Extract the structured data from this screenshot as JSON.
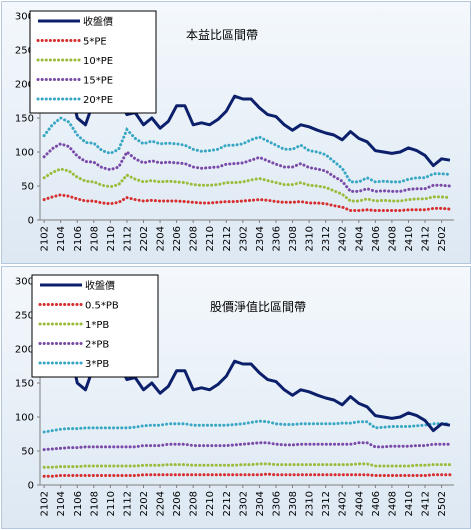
{
  "chart_data": [
    {
      "type": "line",
      "title": "本益比區間帶",
      "x": [
        "2102",
        "2103",
        "2104",
        "2105",
        "2106",
        "2107",
        "2108",
        "2109",
        "2110",
        "2111",
        "2112",
        "2201",
        "2202",
        "2203",
        "2204",
        "2205",
        "2206",
        "2207",
        "2208",
        "2209",
        "2210",
        "2211",
        "2212",
        "2301",
        "2302",
        "2303",
        "2304",
        "2305",
        "2306",
        "2307",
        "2308",
        "2309",
        "2310",
        "2311",
        "2312",
        "2401",
        "2402",
        "2403",
        "2404",
        "2405",
        "2406",
        "2407",
        "2408",
        "2409",
        "2410",
        "2411",
        "2412",
        "2501",
        "2502",
        "2503"
      ],
      "x_tick_labels": [
        "2102",
        "2104",
        "2106",
        "2108",
        "2110",
        "2112",
        "2202",
        "2204",
        "2206",
        "2208",
        "2210",
        "2212",
        "2302",
        "2304",
        "2306",
        "2308",
        "2310",
        "2312",
        "2402",
        "2404",
        "2406",
        "2408",
        "2410",
        "2412",
        "2502"
      ],
      "ylim": [
        0,
        300
      ],
      "yticks": [
        0,
        50,
        100,
        150,
        200,
        250,
        300
      ],
      "legend": "top-left",
      "series": [
        {
          "name": "收盤價",
          "color": "#0b1f6b",
          "style": "solid",
          "values": [
            190,
            200,
            215,
            205,
            150,
            140,
            175,
            180,
            165,
            180,
            155,
            158,
            140,
            150,
            135,
            145,
            168,
            168,
            140,
            143,
            140,
            148,
            160,
            182,
            178,
            178,
            165,
            155,
            152,
            140,
            132,
            140,
            137,
            132,
            128,
            125,
            118,
            130,
            120,
            115,
            102,
            100,
            98,
            100,
            106,
            102,
            95,
            80,
            90,
            88
          ]
        },
        {
          "name": "5*PE",
          "color": "#d62e2e",
          "style": "dotted",
          "values": [
            30,
            34,
            37,
            35,
            31,
            28,
            28,
            25,
            24,
            26,
            33,
            30,
            28,
            29,
            28,
            28,
            28,
            27,
            26,
            25,
            25,
            26,
            27,
            27,
            28,
            29,
            30,
            29,
            27,
            26,
            26,
            27,
            25,
            25,
            24,
            21,
            19,
            14,
            14,
            15,
            14,
            14,
            14,
            14,
            15,
            15,
            15,
            17,
            17,
            16
          ]
        },
        {
          "name": "10*PE",
          "color": "#9bbb3b",
          "style": "dotted",
          "values": [
            62,
            70,
            75,
            72,
            63,
            57,
            56,
            51,
            49,
            52,
            66,
            60,
            56,
            58,
            56,
            57,
            56,
            55,
            52,
            51,
            51,
            52,
            55,
            55,
            56,
            59,
            61,
            58,
            55,
            52,
            52,
            55,
            51,
            50,
            48,
            43,
            38,
            28,
            28,
            31,
            28,
            29,
            28,
            28,
            30,
            31,
            31,
            34,
            34,
            33
          ]
        },
        {
          "name": "15*PE",
          "color": "#7a4aa8",
          "style": "dotted",
          "values": [
            93,
            105,
            112,
            108,
            94,
            86,
            85,
            77,
            74,
            78,
            100,
            90,
            84,
            87,
            84,
            85,
            84,
            83,
            78,
            76,
            77,
            78,
            82,
            83,
            84,
            88,
            92,
            87,
            82,
            78,
            78,
            83,
            77,
            75,
            72,
            64,
            57,
            42,
            42,
            46,
            42,
            43,
            42,
            42,
            45,
            46,
            46,
            51,
            51,
            50
          ]
        },
        {
          "name": "20*PE",
          "color": "#38a7c4",
          "style": "dotted",
          "values": [
            124,
            140,
            150,
            144,
            125,
            114,
            113,
            102,
            98,
            104,
            133,
            120,
            112,
            116,
            112,
            113,
            112,
            110,
            104,
            101,
            102,
            104,
            110,
            110,
            112,
            118,
            122,
            116,
            110,
            104,
            104,
            110,
            102,
            100,
            96,
            86,
            76,
            56,
            56,
            62,
            56,
            57,
            56,
            56,
            60,
            62,
            62,
            68,
            68,
            67
          ]
        }
      ]
    },
    {
      "type": "line",
      "title": "股價淨值比區間帶",
      "x": [
        "2102",
        "2103",
        "2104",
        "2105",
        "2106",
        "2107",
        "2108",
        "2109",
        "2110",
        "2111",
        "2112",
        "2201",
        "2202",
        "2203",
        "2204",
        "2205",
        "2206",
        "2207",
        "2208",
        "2209",
        "2210",
        "2211",
        "2212",
        "2301",
        "2302",
        "2303",
        "2304",
        "2305",
        "2306",
        "2307",
        "2308",
        "2309",
        "2310",
        "2311",
        "2312",
        "2401",
        "2402",
        "2403",
        "2404",
        "2405",
        "2406",
        "2407",
        "2408",
        "2409",
        "2410",
        "2411",
        "2412",
        "2501",
        "2502",
        "2503"
      ],
      "x_tick_labels": [
        "2102",
        "2104",
        "2106",
        "2108",
        "2110",
        "2112",
        "2202",
        "2204",
        "2206",
        "2208",
        "2210",
        "2212",
        "2302",
        "2304",
        "2306",
        "2308",
        "2310",
        "2312",
        "2402",
        "2404",
        "2406",
        "2408",
        "2410",
        "2412",
        "2502"
      ],
      "ylim": [
        0,
        300
      ],
      "yticks": [
        0,
        50,
        100,
        150,
        200,
        250,
        300
      ],
      "legend": "top-left",
      "series": [
        {
          "name": "收盤價",
          "color": "#0b1f6b",
          "style": "solid",
          "values": [
            190,
            200,
            215,
            205,
            150,
            140,
            175,
            180,
            165,
            180,
            155,
            158,
            140,
            150,
            135,
            145,
            168,
            168,
            140,
            143,
            140,
            148,
            160,
            182,
            178,
            178,
            165,
            155,
            152,
            140,
            132,
            140,
            137,
            132,
            128,
            125,
            118,
            130,
            120,
            115,
            102,
            100,
            98,
            100,
            106,
            102,
            95,
            80,
            90,
            88
          ]
        },
        {
          "name": "0.5*PB",
          "color": "#d62e2e",
          "style": "dotted",
          "values": [
            13,
            13,
            14,
            14,
            14,
            14,
            14,
            14,
            14,
            14,
            14,
            14,
            15,
            15,
            15,
            15,
            15,
            15,
            15,
            15,
            15,
            15,
            15,
            15,
            15,
            15,
            15,
            16,
            15,
            15,
            15,
            15,
            15,
            15,
            15,
            15,
            15,
            15,
            15,
            15,
            14,
            14,
            14,
            14,
            14,
            14,
            14,
            15,
            15,
            15
          ]
        },
        {
          "name": "1*PB",
          "color": "#9bbb3b",
          "style": "dotted",
          "values": [
            26,
            26,
            27,
            27,
            27,
            28,
            28,
            28,
            28,
            28,
            28,
            28,
            29,
            29,
            29,
            30,
            30,
            30,
            29,
            29,
            29,
            29,
            29,
            29,
            30,
            30,
            31,
            31,
            30,
            30,
            30,
            30,
            30,
            30,
            30,
            30,
            30,
            30,
            31,
            31,
            28,
            28,
            28,
            28,
            28,
            29,
            29,
            30,
            30,
            30
          ]
        },
        {
          "name": "2*PB",
          "color": "#7a4aa8",
          "style": "dotted",
          "values": [
            52,
            53,
            54,
            55,
            55,
            56,
            56,
            56,
            56,
            56,
            56,
            56,
            58,
            58,
            58,
            60,
            60,
            60,
            58,
            58,
            58,
            58,
            58,
            59,
            60,
            61,
            62,
            62,
            60,
            59,
            59,
            60,
            60,
            60,
            60,
            60,
            60,
            60,
            62,
            62,
            56,
            56,
            57,
            57,
            57,
            58,
            58,
            60,
            60,
            60
          ]
        },
        {
          "name": "3*PB",
          "color": "#38a7c4",
          "style": "dotted",
          "values": [
            78,
            80,
            82,
            83,
            83,
            84,
            84,
            84,
            84,
            84,
            84,
            85,
            87,
            88,
            88,
            90,
            90,
            90,
            88,
            88,
            88,
            88,
            88,
            89,
            90,
            92,
            94,
            93,
            90,
            89,
            89,
            90,
            90,
            90,
            90,
            90,
            91,
            91,
            93,
            93,
            84,
            85,
            86,
            86,
            86,
            87,
            88,
            90,
            90,
            90
          ]
        }
      ]
    }
  ]
}
